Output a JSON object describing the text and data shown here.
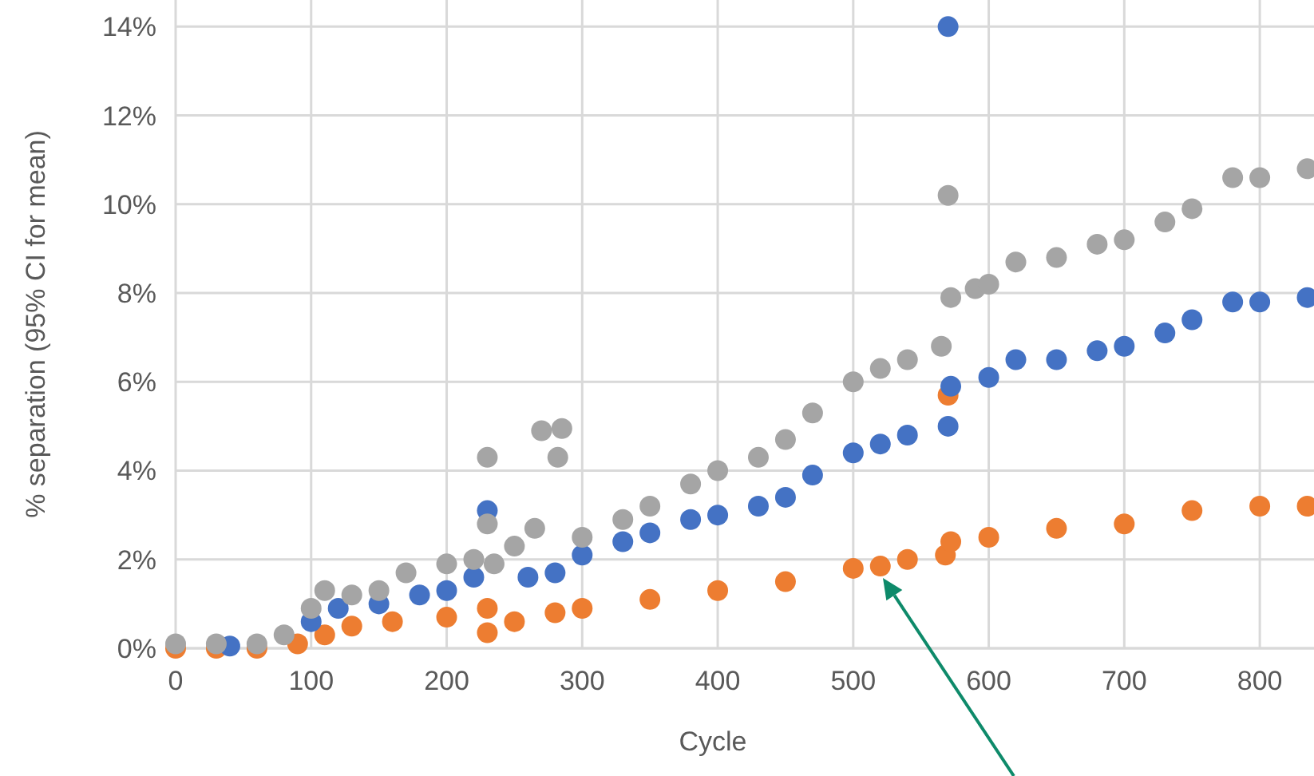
{
  "chart_data": {
    "type": "scatter",
    "xlabel": "Cycle",
    "ylabel": "% separation (95% CI for mean)",
    "xlim": [
      0,
      840
    ],
    "xticks": [
      0,
      100,
      200,
      300,
      400,
      500,
      600,
      700,
      800
    ],
    "ylim": [
      0,
      14.6
    ],
    "yticks": [
      {
        "value": 0,
        "label": "0%"
      },
      {
        "value": 2,
        "label": "2%"
      },
      {
        "value": 4,
        "label": "4%"
      },
      {
        "value": 6,
        "label": "6%"
      },
      {
        "value": 8,
        "label": "8%"
      },
      {
        "value": 10,
        "label": "10%"
      },
      {
        "value": 12,
        "label": "12%"
      },
      {
        "value": 14,
        "label": "14%"
      }
    ],
    "grid": true,
    "marker": "circle",
    "series": [
      {
        "color": "#ed7d31",
        "x": [
          0,
          30,
          60,
          90,
          110,
          130,
          160,
          200,
          230,
          230,
          250,
          280,
          300,
          350,
          400,
          450,
          500,
          520,
          540,
          568,
          570,
          572,
          600,
          650,
          700,
          750,
          800,
          835
        ],
        "values": [
          0,
          0,
          0,
          0.1,
          0.3,
          0.5,
          0.6,
          0.7,
          0.9,
          0.35,
          0.6,
          0.8,
          0.9,
          1.1,
          1.3,
          1.5,
          1.8,
          1.85,
          2.0,
          2.1,
          5.7,
          2.4,
          2.5,
          2.7,
          2.8,
          3.1,
          3.2,
          3.2
        ]
      },
      {
        "color": "#4472c4",
        "x": [
          40,
          100,
          120,
          150,
          180,
          200,
          220,
          230,
          260,
          280,
          300,
          330,
          350,
          380,
          400,
          430,
          450,
          470,
          500,
          520,
          540,
          570,
          570,
          572,
          600,
          620,
          650,
          680,
          700,
          730,
          750,
          780,
          800,
          835
        ],
        "values": [
          0.05,
          0.6,
          0.9,
          1.0,
          1.2,
          1.3,
          1.6,
          3.1,
          1.6,
          1.7,
          2.1,
          2.4,
          2.6,
          2.9,
          3.0,
          3.2,
          3.4,
          3.9,
          4.4,
          4.6,
          4.8,
          5.0,
          14.0,
          5.9,
          6.1,
          6.5,
          6.5,
          6.7,
          6.8,
          7.1,
          7.4,
          7.8,
          7.8,
          7.9
        ]
      },
      {
        "color": "#a5a5a5",
        "x": [
          0,
          30,
          60,
          80,
          100,
          110,
          130,
          150,
          170,
          200,
          220,
          230,
          230,
          235,
          250,
          265,
          270,
          282,
          285,
          300,
          330,
          350,
          380,
          400,
          430,
          450,
          470,
          500,
          520,
          540,
          565,
          570,
          572,
          590,
          600,
          620,
          650,
          680,
          700,
          730,
          750,
          780,
          800,
          835
        ],
        "values": [
          0.1,
          0.1,
          0.1,
          0.3,
          0.9,
          1.3,
          1.2,
          1.3,
          1.7,
          1.9,
          2.0,
          4.3,
          2.8,
          1.9,
          2.3,
          2.7,
          4.9,
          4.3,
          4.95,
          2.5,
          2.9,
          3.2,
          3.7,
          4.0,
          4.3,
          4.7,
          5.3,
          6.0,
          6.3,
          6.5,
          6.8,
          10.2,
          7.9,
          8.1,
          8.2,
          8.7,
          8.8,
          9.1,
          9.2,
          9.6,
          9.9,
          10.6,
          10.6,
          10.8
        ]
      }
    ]
  }
}
